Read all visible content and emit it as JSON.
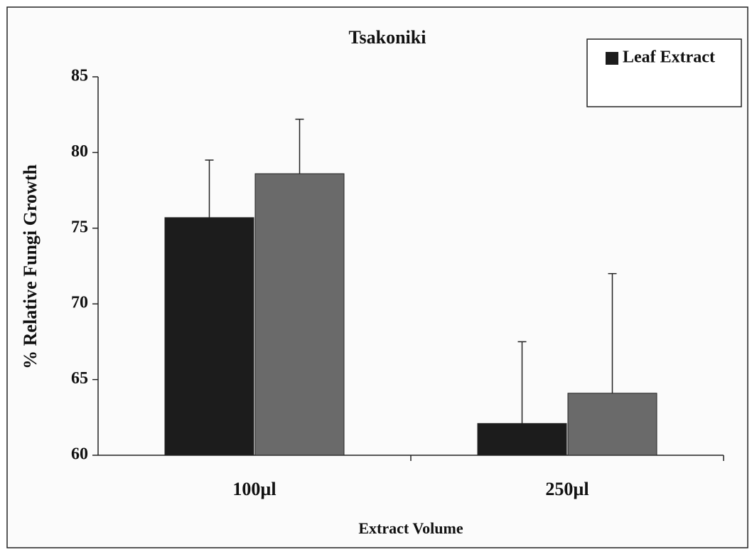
{
  "chart_data": {
    "type": "bar",
    "title": "Tsakoniki",
    "x_label": "Extract Volume",
    "y_label": "% Relative Fungi Growth",
    "categories": [
      "100µl",
      "250µl"
    ],
    "series": [
      {
        "name": "Leaf Extract",
        "color": "#1c1c1c",
        "values": [
          75.7,
          62.1
        ],
        "errors": [
          3.8,
          5.4
        ]
      },
      {
        "color": "#6a6a6a",
        "values": [
          78.6,
          64.1
        ],
        "errors": [
          3.6,
          7.9
        ]
      }
    ],
    "ylim": [
      60,
      85
    ],
    "yticks": [
      60,
      65,
      70,
      75,
      80,
      85
    ],
    "grid": false,
    "legend": "upper right"
  }
}
